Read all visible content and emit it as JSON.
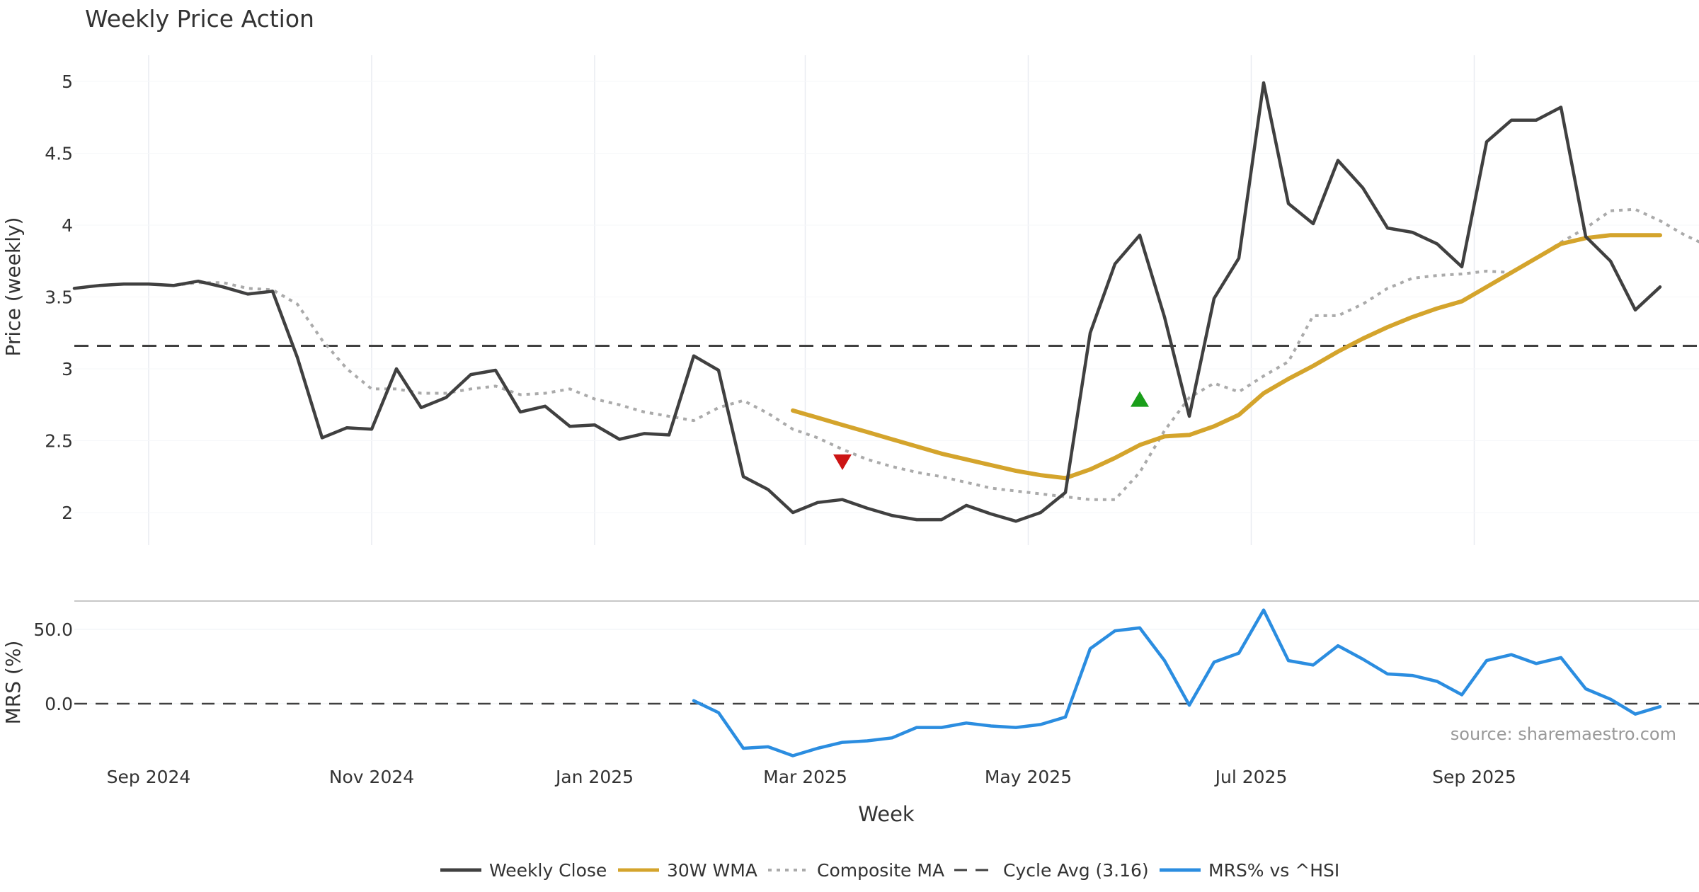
{
  "title": "Weekly Price Action",
  "source_note": "source: sharemaestro.com",
  "colors": {
    "close": "#404040",
    "wma": "#d4a42c",
    "composite": "#aaaaaa",
    "cycle": "#404040",
    "mrs": "#2b8de0",
    "buy": "#1a9e1a",
    "sell": "#cc1414",
    "grid": "#e9ecf1"
  },
  "legend": [
    {
      "key": "close",
      "label": "Weekly Close",
      "style": "solid"
    },
    {
      "key": "wma",
      "label": "30W WMA",
      "style": "solid"
    },
    {
      "key": "composite",
      "label": "Composite MA",
      "style": "dotted"
    },
    {
      "key": "cycle",
      "label": "Cycle Avg (3.16)",
      "style": "dashed"
    },
    {
      "key": "mrs",
      "label": "MRS% vs ^HSI",
      "style": "solid"
    }
  ],
  "chart_data": [
    {
      "type": "line",
      "panel": "price",
      "title": "Weekly Price Action",
      "ylabel": "Price (weekly)",
      "xlabel": "Week",
      "x_ticks": [
        "Sep 2024",
        "Nov 2024",
        "Jan 2025",
        "Mar 2025",
        "May 2025",
        "Jul 2025",
        "Sep 2025"
      ],
      "x_tick_weeks": [
        3,
        12,
        21,
        29.5,
        38.5,
        47.5,
        56.5
      ],
      "y_ticks": [
        "2",
        "2.5",
        "3",
        "3.5",
        "4",
        "4.5",
        "5"
      ],
      "ylim": [
        1.75,
        5.2
      ],
      "xlim": [
        0,
        66
      ],
      "grid": true,
      "cycle_avg": 3.16,
      "series": [
        {
          "name": "Weekly Close",
          "key": "close",
          "x_start": 0,
          "values": [
            3.56,
            3.58,
            3.59,
            3.59,
            3.58,
            3.61,
            3.57,
            3.52,
            3.54,
            3.08,
            2.52,
            2.59,
            2.58,
            3.0,
            2.73,
            2.8,
            2.96,
            2.99,
            2.7,
            2.74,
            2.6,
            2.61,
            2.51,
            2.55,
            2.54,
            3.09,
            2.99,
            2.25,
            2.16,
            2.0,
            2.07,
            2.09,
            2.03,
            1.98,
            1.95,
            1.95,
            2.05,
            1.99,
            1.94,
            2.0,
            2.14,
            3.25,
            3.73,
            3.93,
            3.36,
            2.67,
            3.49,
            3.77,
            4.99,
            4.15,
            4.01,
            4.45,
            4.26,
            3.98,
            3.95,
            3.87,
            3.71,
            4.58,
            4.73,
            4.73,
            4.82,
            3.92,
            3.75,
            3.41,
            3.57
          ]
        },
        {
          "name": "30W WMA",
          "key": "wma",
          "x_start": 29,
          "values": [
            2.71,
            2.66,
            2.61,
            2.56,
            2.51,
            2.46,
            2.41,
            2.37,
            2.33,
            2.29,
            2.26,
            2.24,
            2.3,
            2.38,
            2.47,
            2.53,
            2.54,
            2.6,
            2.68,
            2.83,
            2.93,
            3.02,
            3.12,
            3.21,
            3.29,
            3.36,
            3.42,
            3.47,
            3.57,
            3.67,
            3.77,
            3.87,
            3.91,
            3.93,
            3.93,
            3.93
          ]
        },
        {
          "name": "Composite MA",
          "key": "composite",
          "x_start": 4,
          "values": [
            3.58,
            3.6,
            3.6,
            3.56,
            3.55,
            3.45,
            3.2,
            3.0,
            2.86,
            2.86,
            2.83,
            2.83,
            2.86,
            2.88,
            2.82,
            2.83,
            2.86,
            2.79,
            2.75,
            2.7,
            2.67,
            2.64,
            2.73,
            2.78,
            2.69,
            2.58,
            2.52,
            2.44,
            2.37,
            2.32,
            2.28,
            2.25,
            2.21,
            2.17,
            2.15,
            2.13,
            2.11,
            2.09,
            2.09,
            2.28,
            2.57,
            2.8,
            2.9,
            2.84,
            2.95,
            3.05,
            3.37,
            3.37,
            3.45,
            3.56,
            3.63,
            3.65,
            3.66,
            3.68,
            3.67,
            3.77,
            3.88,
            3.98,
            4.1,
            4.11,
            4.03,
            3.93,
            3.85
          ]
        }
      ],
      "markers": [
        {
          "type": "sell",
          "shape": "triangle-down",
          "x": 31,
          "y": 2.35
        },
        {
          "type": "buy",
          "shape": "triangle-up",
          "x": 43,
          "y": 2.79
        }
      ]
    },
    {
      "type": "line",
      "panel": "mrs",
      "ylabel": "MRS (%)",
      "xlabel": "Week",
      "y_ticks": [
        "50.0",
        "0.0"
      ],
      "y_tick_values": [
        50,
        0
      ],
      "ylim": [
        -45,
        70
      ],
      "xlim": [
        0,
        66
      ],
      "zero_line": 0,
      "series": [
        {
          "name": "MRS% vs ^HSI",
          "key": "mrs",
          "x_start": 25,
          "values": [
            2,
            -6,
            -30,
            -29,
            -35,
            -30,
            -26,
            -25,
            -23,
            -16,
            -16,
            -13,
            -15,
            -16,
            -14,
            -9,
            37,
            49,
            51,
            29,
            -1,
            28,
            34,
            63,
            29,
            26,
            39,
            30,
            20,
            19,
            15,
            6,
            29,
            33,
            27,
            31,
            10,
            3,
            -7,
            -2
          ]
        }
      ]
    }
  ]
}
